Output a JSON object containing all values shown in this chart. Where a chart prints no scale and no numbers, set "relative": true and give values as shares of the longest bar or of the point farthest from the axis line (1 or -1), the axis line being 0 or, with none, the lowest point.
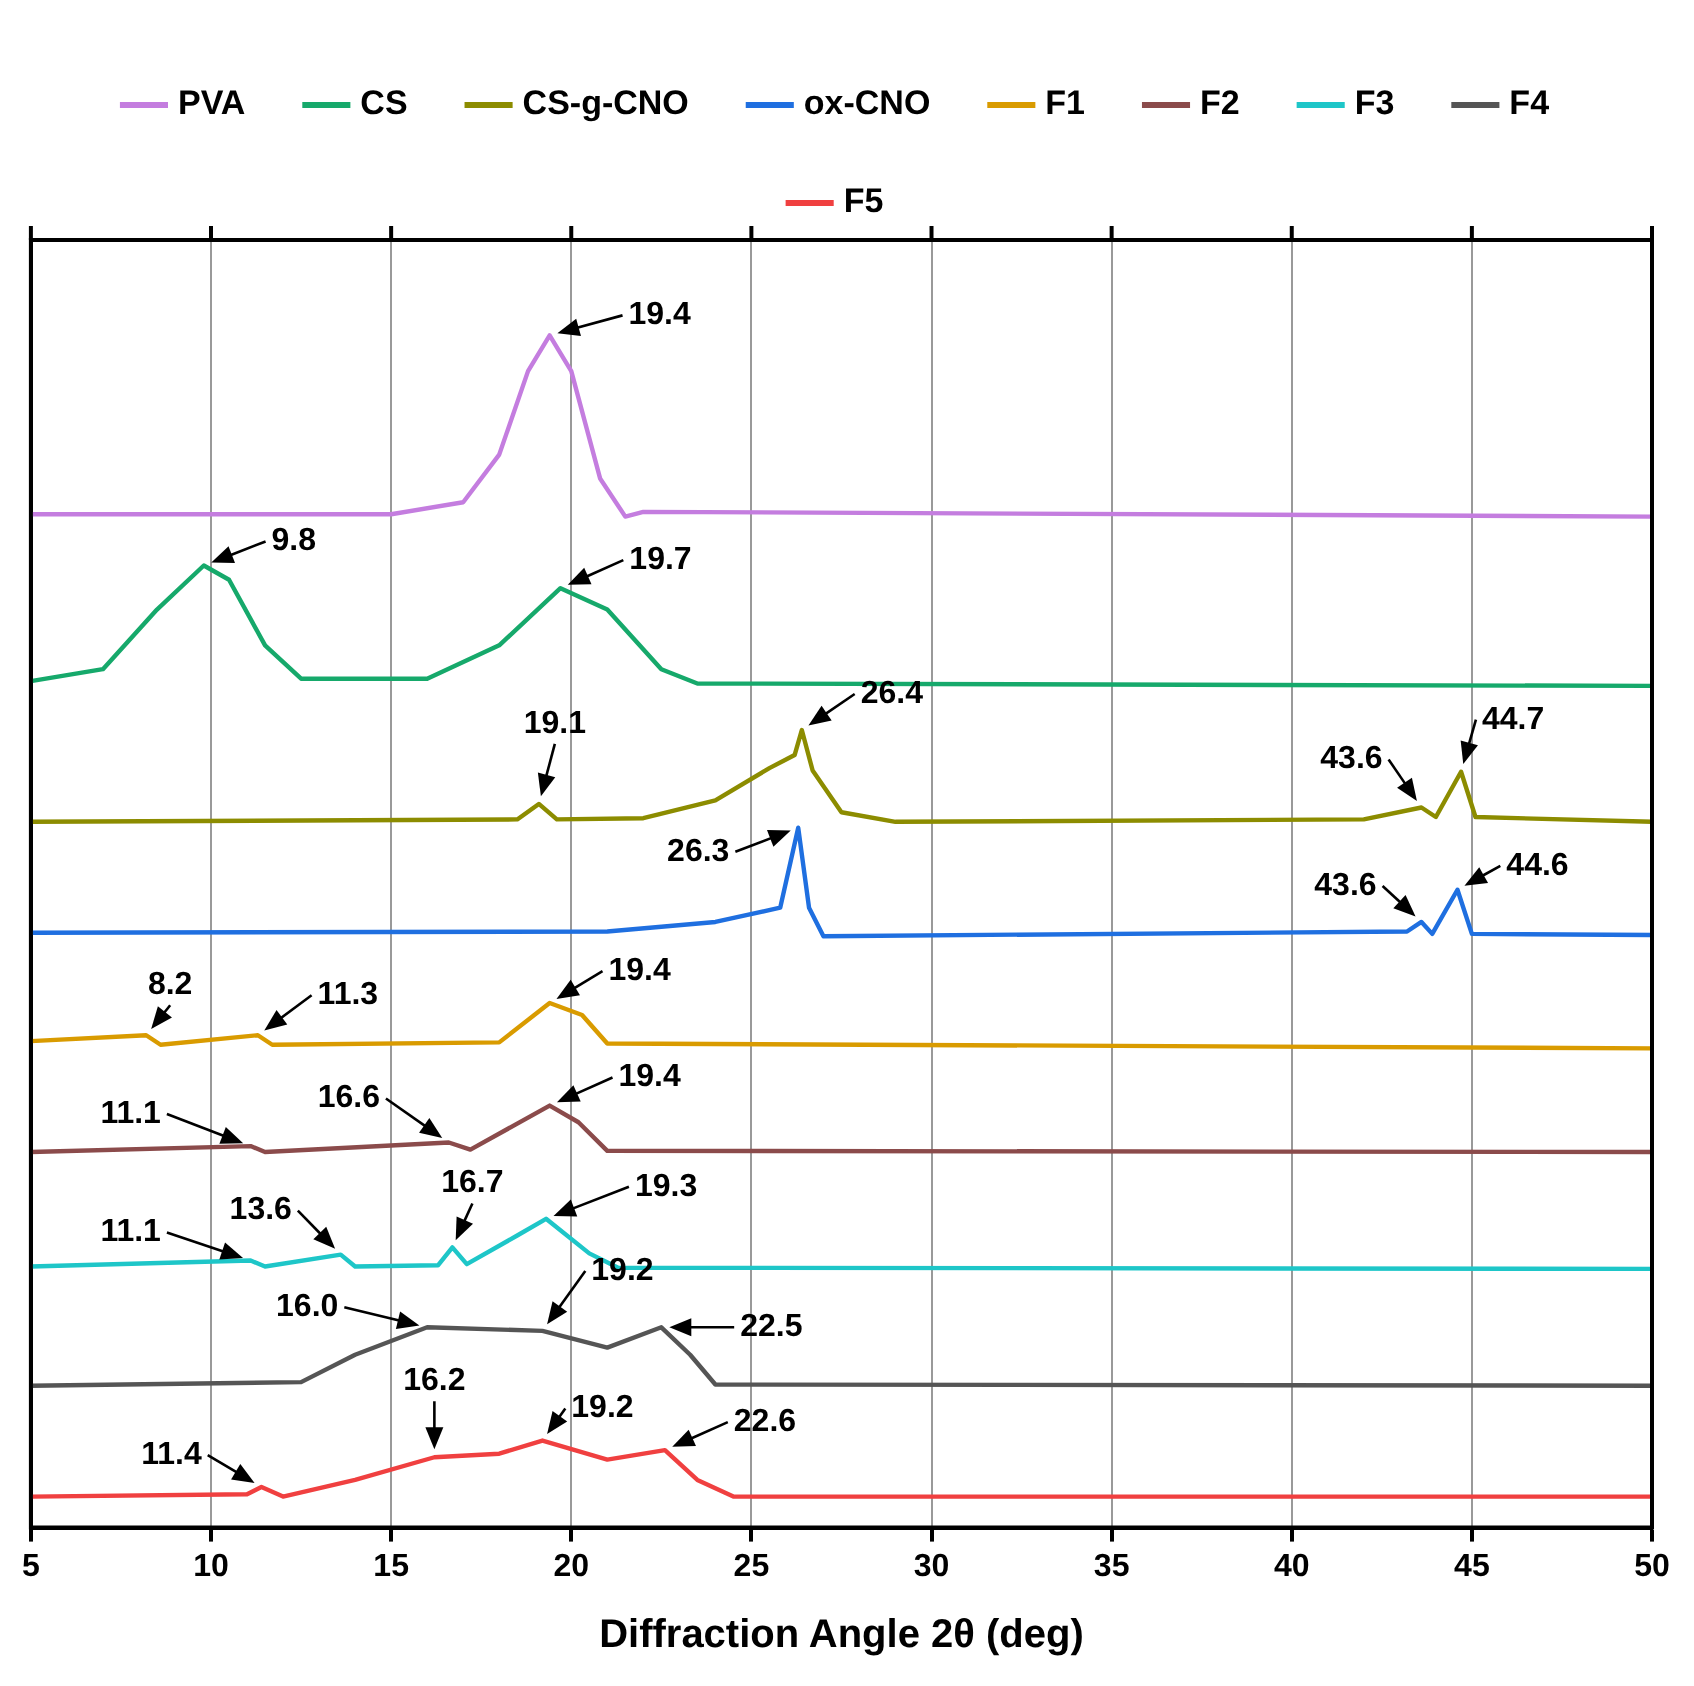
{
  "chart_data": {
    "type": "line",
    "relative": true,
    "xlabel": "Diffraction Angle 2θ (deg)",
    "xlim": [
      5,
      50
    ],
    "xticks": [
      5,
      10,
      15,
      20,
      25,
      30,
      35,
      40,
      45,
      50
    ],
    "grid": "x",
    "legend": "top",
    "marker": "none",
    "line_style": "solid",
    "series": [
      {
        "name": "PVA",
        "color": "#c47ddf",
        "x": [
          5,
          15,
          17,
          18,
          18.8,
          19.4,
          20,
          20.8,
          21.5,
          22,
          50
        ],
        "values": [
          0.85,
          0.85,
          0.86,
          0.9,
          0.97,
          1.0,
          0.97,
          0.88,
          0.848,
          0.852,
          0.848
        ]
      },
      {
        "name": "CS",
        "color": "#16a96b",
        "x": [
          5,
          7,
          8.5,
          9.8,
          10.5,
          11.5,
          12.5,
          16,
          18,
          19.7,
          21,
          22.5,
          23.5,
          50
        ],
        "values": [
          0.71,
          0.72,
          0.77,
          0.807,
          0.795,
          0.74,
          0.712,
          0.712,
          0.74,
          0.788,
          0.77,
          0.72,
          0.708,
          0.706
        ]
      },
      {
        "name": "CS-g-CNO",
        "color": "#8c8c00",
        "x": [
          5,
          18.5,
          19.1,
          19.6,
          22,
          24,
          25.5,
          26.2,
          26.4,
          26.7,
          27.5,
          29,
          42,
          43.6,
          44,
          44.7,
          45.1,
          50
        ],
        "values": [
          0.592,
          0.594,
          0.607,
          0.594,
          0.595,
          0.61,
          0.637,
          0.648,
          0.669,
          0.635,
          0.6,
          0.592,
          0.594,
          0.604,
          0.596,
          0.634,
          0.596,
          0.592
        ]
      },
      {
        "name": "ox-CNO",
        "color": "#1f6fe0",
        "x": [
          5,
          21,
          24,
          25.8,
          26.3,
          26.6,
          27,
          43.2,
          43.6,
          43.9,
          44.6,
          45,
          50
        ],
        "values": [
          0.499,
          0.5,
          0.508,
          0.52,
          0.587,
          0.52,
          0.496,
          0.5,
          0.508,
          0.498,
          0.535,
          0.498,
          0.497
        ]
      },
      {
        "name": "F1",
        "color": "#d99b00",
        "x": [
          5,
          8.2,
          8.6,
          11.3,
          11.7,
          18,
          19.4,
          20.3,
          21,
          50
        ],
        "values": [
          0.408,
          0.413,
          0.405,
          0.413,
          0.405,
          0.407,
          0.44,
          0.43,
          0.406,
          0.402
        ]
      },
      {
        "name": "F2",
        "color": "#8b4b4b",
        "x": [
          5,
          11.1,
          11.5,
          16.6,
          17.2,
          19.4,
          20.2,
          21,
          50
        ],
        "values": [
          0.315,
          0.32,
          0.315,
          0.323,
          0.317,
          0.354,
          0.34,
          0.316,
          0.315
        ]
      },
      {
        "name": "F3",
        "color": "#1ec6c8",
        "x": [
          5,
          11.1,
          11.5,
          13.6,
          14,
          16.3,
          16.7,
          17.1,
          18.5,
          19.3,
          20.5,
          21.3,
          50
        ],
        "values": [
          0.219,
          0.224,
          0.219,
          0.229,
          0.219,
          0.22,
          0.235,
          0.221,
          0.245,
          0.259,
          0.23,
          0.218,
          0.217
        ]
      },
      {
        "name": "F4",
        "color": "#555555",
        "x": [
          5,
          12.5,
          14,
          16,
          19.2,
          21,
          22.5,
          23.3,
          24,
          50
        ],
        "values": [
          0.119,
          0.122,
          0.145,
          0.168,
          0.165,
          0.151,
          0.168,
          0.145,
          0.12,
          0.119
        ]
      },
      {
        "name": "F5",
        "color": "#f04040",
        "x": [
          5,
          11,
          11.4,
          12,
          14,
          16.2,
          18,
          19.2,
          21,
          22.6,
          23.5,
          24.5,
          50
        ],
        "values": [
          0.026,
          0.028,
          0.034,
          0.026,
          0.04,
          0.059,
          0.062,
          0.073,
          0.057,
          0.065,
          0.04,
          0.026,
          0.026
        ]
      }
    ],
    "annotations": [
      {
        "text": "19.4",
        "x": 19.4,
        "y": 1.0
      },
      {
        "text": "9.8",
        "x": 9.8,
        "y": 0.807
      },
      {
        "text": "19.7",
        "x": 19.7,
        "y": 0.788
      },
      {
        "text": "19.1",
        "x": 19.1,
        "y": 0.607
      },
      {
        "text": "26.4",
        "x": 26.4,
        "y": 0.669
      },
      {
        "text": "43.6",
        "x": 43.6,
        "y": 0.604
      },
      {
        "text": "44.7",
        "x": 44.7,
        "y": 0.634
      },
      {
        "text": "26.3",
        "x": 26.3,
        "y": 0.587
      },
      {
        "text": "43.6",
        "x": 43.6,
        "y": 0.508
      },
      {
        "text": "44.6",
        "x": 44.6,
        "y": 0.535
      },
      {
        "text": "8.2",
        "x": 8.2,
        "y": 0.413
      },
      {
        "text": "11.3",
        "x": 11.3,
        "y": 0.413
      },
      {
        "text": "19.4",
        "x": 19.4,
        "y": 0.44
      },
      {
        "text": "11.1",
        "x": 11.1,
        "y": 0.32
      },
      {
        "text": "16.6",
        "x": 16.6,
        "y": 0.323
      },
      {
        "text": "19.4",
        "x": 19.4,
        "y": 0.354
      },
      {
        "text": "11.1",
        "x": 11.1,
        "y": 0.224
      },
      {
        "text": "13.6",
        "x": 13.6,
        "y": 0.229
      },
      {
        "text": "16.7",
        "x": 16.7,
        "y": 0.235
      },
      {
        "text": "19.3",
        "x": 19.3,
        "y": 0.259
      },
      {
        "text": "16.0",
        "x": 16.0,
        "y": 0.168
      },
      {
        "text": "19.2",
        "x": 19.2,
        "y": 0.165
      },
      {
        "text": "22.5",
        "x": 22.5,
        "y": 0.168
      },
      {
        "text": "11.4",
        "x": 11.4,
        "y": 0.034
      },
      {
        "text": "16.2",
        "x": 16.2,
        "y": 0.059
      },
      {
        "text": "19.2",
        "x": 19.2,
        "y": 0.073
      },
      {
        "text": "22.6",
        "x": 22.6,
        "y": 0.065
      }
    ]
  }
}
